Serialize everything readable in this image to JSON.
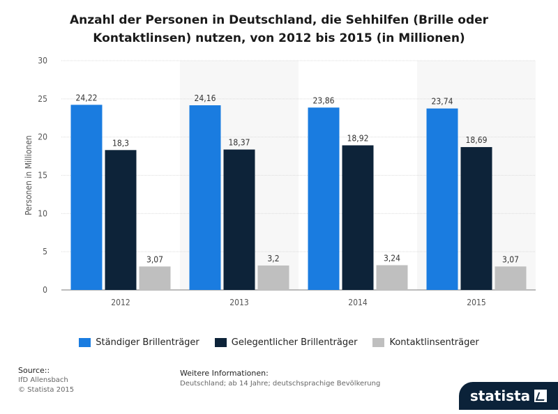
{
  "title": "Anzahl der Personen in Deutschland, die Sehhilfen (Brille oder Kontaktlinsen) nutzen, von 2012 bis 2015 (in Millionen)",
  "chart_data": {
    "type": "bar",
    "title": "Anzahl der Personen in Deutschland, die Sehhilfen (Brille oder Kontaktlinsen) nutzen, von 2012 bis 2015 (in Millionen)",
    "categories": [
      "2012",
      "2013",
      "2014",
      "2015"
    ],
    "series": [
      {
        "name": "Ständiger Brillenträger",
        "color": "#1a7ce0",
        "values": [
          24.22,
          24.16,
          23.86,
          23.74
        ],
        "labels": [
          "24,22",
          "24,16",
          "23,86",
          "23,74"
        ]
      },
      {
        "name": "Gelegentlicher Brillenträger",
        "color": "#0d2339",
        "values": [
          18.3,
          18.37,
          18.92,
          18.69
        ],
        "labels": [
          "18,3",
          "18,37",
          "18,92",
          "18,69"
        ]
      },
      {
        "name": "Kontaktlinsenträger",
        "color": "#bfbfbf",
        "values": [
          3.07,
          3.2,
          3.24,
          3.07
        ],
        "labels": [
          "3,07",
          "3,2",
          "3,24",
          "3,07"
        ]
      }
    ],
    "xlabel": "",
    "ylabel": "Personen in Millionen",
    "ylim": [
      0,
      30
    ],
    "yticks": [
      "0",
      "5",
      "10",
      "15",
      "20",
      "25",
      "30"
    ],
    "grid": true,
    "legend": "bottom"
  },
  "footer": {
    "source_heading": "Source::",
    "source_lines": [
      "IfD Allensbach",
      "© Statista 2015"
    ],
    "info_heading": "Weitere Informationen:",
    "info_text": "Deutschland; ab 14 Jahre; deutschsprachige Bevölkerung"
  },
  "brand": "statista"
}
